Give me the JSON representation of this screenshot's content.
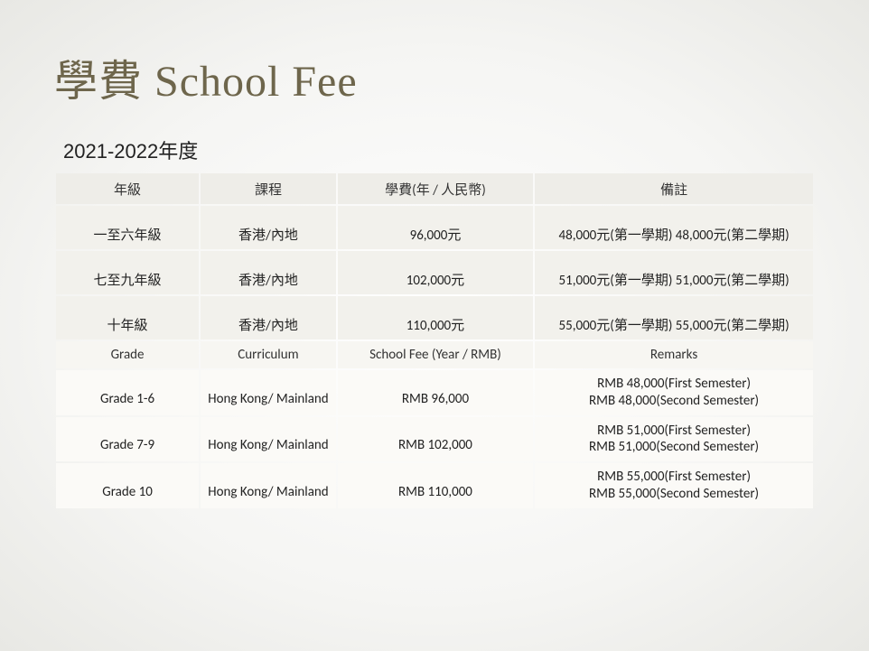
{
  "title": "學費 School Fee",
  "subtitle": "2021-2022年度",
  "table_cn": {
    "headers": [
      "年級",
      "課程",
      "學費(年 / 人民幣)",
      "備註"
    ],
    "rows": [
      {
        "grade": "一至六年級",
        "curr": "香港/內地",
        "fee": "96,000元",
        "remark": "48,000元(第一學期) 48,000元(第二學期)"
      },
      {
        "grade": "七至九年級",
        "curr": "香港/內地",
        "fee": "102,000元",
        "remark": "51,000元(第一學期) 51,000元(第二學期)"
      },
      {
        "grade": "十年級",
        "curr": "香港/內地",
        "fee": "110,000元",
        "remark": "55,000元(第一學期) 55,000元(第二學期)"
      }
    ]
  },
  "table_en": {
    "headers": [
      "Grade",
      "Curriculum",
      "School Fee (Year / RMB)",
      "Remarks"
    ],
    "rows": [
      {
        "grade": "Grade 1-6",
        "curr": "Hong Kong/ Mainland",
        "fee": "RMB 96,000",
        "remark1": "RMB 48,000(First Semester)",
        "remark2": "RMB 48,000(Second Semester)"
      },
      {
        "grade": "Grade 7-9",
        "curr": "Hong Kong/ Mainland",
        "fee": "RMB 102,000",
        "remark1": "RMB 51,000(First Semester)",
        "remark2": "RMB 51,000(Second Semester)"
      },
      {
        "grade": "Grade 10",
        "curr": "Hong Kong/ Mainland",
        "fee": "RMB 110,000",
        "remark1": "RMB 55,000(First Semester)",
        "remark2": "RMB 55,000(Second Semester)"
      }
    ]
  },
  "style": {
    "title_color": "#6e664c",
    "header_bg": "#eeede8",
    "row_bg_cn": "#f2f1ec",
    "header_bg_en": "#f7f6f2",
    "row_bg_en": "#fbfaf7",
    "page_bg_inner": "#ffffff",
    "page_bg_outer": "#e8e8e4",
    "title_fontsize": 48,
    "subtitle_fontsize": 22,
    "table_fontsize": 15
  }
}
